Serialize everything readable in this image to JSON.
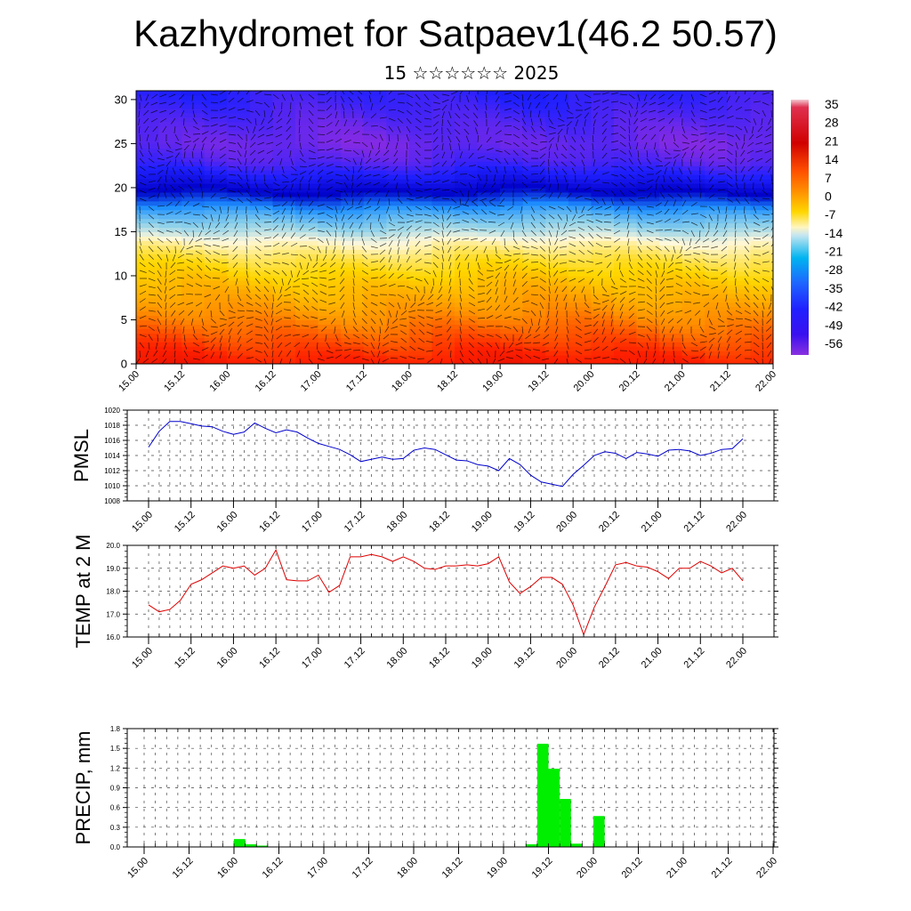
{
  "header": {
    "title": "Kazhydromet for Satpaev1(46.2 50.57)",
    "subtitle": "15 ☆☆☆☆☆☆ 2025"
  },
  "colorbar": {
    "labels": [
      "35",
      "28",
      "21",
      "14",
      "7",
      "0",
      "-7",
      "-14",
      "-21",
      "-28",
      "-35",
      "-42",
      "-49",
      "-56"
    ]
  },
  "chart_data": [
    {
      "type": "heatmap",
      "title": "",
      "xlabel": "",
      "ylabel": "",
      "x_ticks": [
        "15.00",
        "15.12",
        "16.00",
        "16.12",
        "17.00",
        "17.12",
        "18.00",
        "18.12",
        "19.00",
        "19.12",
        "20.00",
        "20.12",
        "21.00",
        "21.12",
        "22.00"
      ],
      "y_ticks": [
        "0",
        "5",
        "10",
        "15",
        "20",
        "25",
        "30"
      ],
      "ylim": [
        0,
        31
      ],
      "value_range": [
        -60,
        38
      ],
      "colormap": [
        "#8a2be2",
        "#2020ff",
        "#0000c8",
        "#1e90ff",
        "#87ceeb",
        "#fff8dc",
        "#ffd700",
        "#ff8c00",
        "#ff2000",
        "#d00000"
      ],
      "levels_y": [
        0,
        3,
        6,
        9,
        12,
        14,
        15,
        17,
        19,
        21,
        23,
        25,
        27,
        31
      ],
      "levels_t": [
        29,
        22,
        15,
        9,
        2,
        -5,
        -12,
        -22,
        -35,
        -46,
        -54,
        -57,
        -55,
        -50
      ],
      "wind_vectors": "overlay"
    },
    {
      "type": "line",
      "ylabel": "PMSL",
      "ylim": [
        1008,
        1020
      ],
      "y_ticks": [
        "1008",
        "1010",
        "1012",
        "1014",
        "1016",
        "1018",
        "1020"
      ],
      "x_ticks": [
        "15.00",
        "15.12",
        "16.00",
        "16.12",
        "17.00",
        "17.12",
        "18.00",
        "18.12",
        "19.00",
        "19.12",
        "20.00",
        "20.12",
        "21.00",
        "21.12",
        "22.00"
      ],
      "color": "#0000cc",
      "x": [
        0,
        3,
        6,
        9,
        12,
        15,
        18,
        21,
        24,
        27,
        30,
        33,
        36,
        39,
        42,
        45,
        48,
        51,
        54,
        57,
        60,
        63,
        66,
        69,
        72,
        75,
        78,
        81,
        84,
        87,
        90,
        93,
        96,
        99,
        102,
        105,
        108,
        111,
        114,
        117,
        120,
        123,
        126,
        129,
        132,
        135,
        138,
        141,
        144,
        147,
        150,
        153,
        156,
        159,
        162,
        165,
        168
      ],
      "values": [
        1015.1,
        1017.2,
        1018.5,
        1018.5,
        1018.2,
        1017.9,
        1017.8,
        1017.2,
        1016.8,
        1017.1,
        1018.3,
        1017.6,
        1017.0,
        1017.4,
        1017.1,
        1016.3,
        1015.6,
        1015.2,
        1014.8,
        1014.1,
        1013.2,
        1013.5,
        1013.8,
        1013.5,
        1013.6,
        1014.7,
        1015.0,
        1014.8,
        1014.1,
        1013.4,
        1013.3,
        1012.8,
        1012.6,
        1012.0,
        1013.6,
        1012.8,
        1011.4,
        1010.5,
        1010.2,
        1009.9,
        1011.5,
        1012.7,
        1014.0,
        1014.5,
        1014.3,
        1013.6,
        1014.4,
        1014.2,
        1013.9,
        1014.7,
        1014.8,
        1014.6,
        1014.0,
        1014.3,
        1014.8,
        1014.9,
        1016.2
      ]
    },
    {
      "type": "line",
      "ylabel": "TEMP at 2 M",
      "ylim": [
        16.0,
        20.0
      ],
      "y_ticks": [
        "16.0",
        "17.0",
        "18.0",
        "19.0",
        "20.0"
      ],
      "x_ticks": [
        "15.00",
        "15.12",
        "16.00",
        "16.12",
        "17.00",
        "17.12",
        "18.00",
        "18.12",
        "19.00",
        "19.12",
        "20.00",
        "20.12",
        "21.00",
        "21.12",
        "22.00"
      ],
      "color": "#dd0000",
      "x": [
        0,
        3,
        6,
        9,
        12,
        15,
        18,
        21,
        24,
        27,
        30,
        33,
        36,
        39,
        42,
        45,
        48,
        51,
        54,
        57,
        60,
        63,
        66,
        69,
        72,
        75,
        78,
        81,
        84,
        87,
        90,
        93,
        96,
        99,
        102,
        105,
        108,
        111,
        114,
        117,
        120,
        123,
        126,
        129,
        132,
        135,
        138,
        141,
        144,
        147,
        150,
        153,
        156,
        159,
        162,
        165,
        168
      ],
      "values": [
        17.4,
        17.1,
        17.2,
        17.6,
        18.3,
        18.5,
        18.8,
        19.1,
        19.0,
        19.1,
        18.7,
        19.0,
        19.8,
        18.5,
        18.45,
        18.45,
        18.7,
        17.95,
        18.25,
        19.5,
        19.5,
        19.6,
        19.5,
        19.3,
        19.5,
        19.3,
        19.0,
        18.95,
        19.1,
        19.1,
        19.15,
        19.1,
        19.2,
        19.5,
        18.4,
        17.9,
        18.2,
        18.6,
        18.6,
        18.3,
        17.4,
        16.1,
        17.3,
        18.2,
        19.15,
        19.25,
        19.1,
        19.05,
        18.85,
        18.55,
        19.0,
        19.0,
        19.3,
        19.1,
        18.8,
        19.0,
        18.45
      ]
    },
    {
      "type": "bar",
      "ylabel": "PRECIP, mm",
      "ylim": [
        0.0,
        1.8
      ],
      "y_ticks": [
        "0.0",
        "0.3",
        "0.6",
        "0.9",
        "1.2",
        "1.5",
        "1.8"
      ],
      "x_ticks": [
        "15.00",
        "15.12",
        "16.00",
        "16.12",
        "17.00",
        "17.12",
        "18.00",
        "18.12",
        "19.00",
        "19.12",
        "20.00",
        "20.12",
        "21.00",
        "21.12",
        "22.00"
      ],
      "color": "#00ee00",
      "bar_width_hours": 3,
      "x": [
        24,
        27,
        30,
        102,
        105,
        108,
        111,
        114,
        120
      ],
      "values": [
        0.12,
        0.04,
        0.02,
        0.04,
        1.57,
        1.19,
        0.73,
        0.05,
        0.47
      ]
    }
  ]
}
